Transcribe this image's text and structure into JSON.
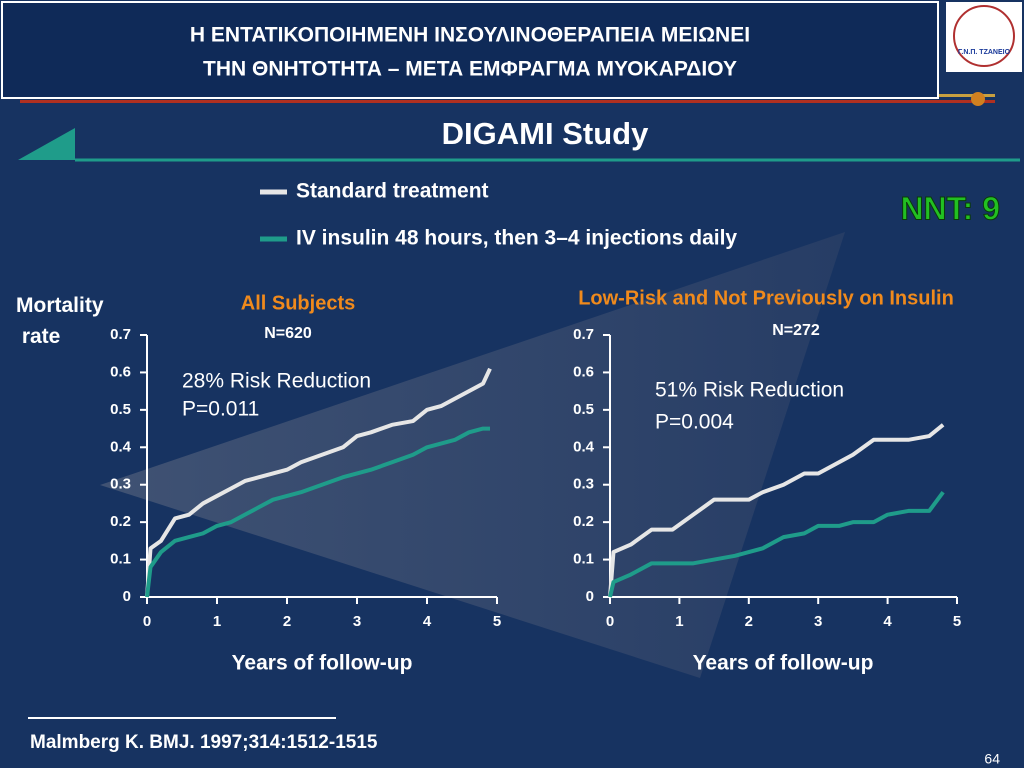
{
  "header": {
    "title_lines": [
      "Η ΕΝΤΑΤΙΚΟΠΟΙΗΜΕΝΗ ΙΝΣΟΥΛΙΝΟΘΕΡΑΠΕΙΑ ΜΕΙΩΝΕΙ",
      "ΤΗΝ ΘΝΗΤΟΤΗΤΑ – ΜΕΤΑ ΕΜΦΡΑΓΜΑ ΜΥΟΚΑΡΔΙΟΥ"
    ],
    "logo_text": "Γ.Ν.Π. ΤΖΑΝΕΙΟ"
  },
  "study_title": "DIGAMI Study",
  "nnt": "NNT: 9",
  "citation": "Malmberg K. BMJ. 1997;314:1512-1515",
  "page_number": "64",
  "chart_data": [
    {
      "type": "line",
      "y_label": "Mortality rate",
      "subtitle": "All Subjects",
      "n_label": "N=620",
      "annotations": [
        "28% Risk Reduction",
        "P=0.011"
      ],
      "x_label": "Years of follow-up",
      "x": [
        0,
        0.05,
        0.2,
        0.4,
        0.6,
        0.8,
        1.0,
        1.2,
        1.4,
        1.6,
        1.8,
        2.0,
        2.2,
        2.5,
        2.8,
        3.0,
        3.2,
        3.5,
        3.8,
        4.0,
        4.2,
        4.4,
        4.6,
        4.8,
        4.9
      ],
      "series": [
        {
          "name": "Standard treatment",
          "color": "#e6e6e6",
          "values": [
            0,
            0.13,
            0.15,
            0.21,
            0.22,
            0.25,
            0.27,
            0.29,
            0.31,
            0.32,
            0.33,
            0.34,
            0.36,
            0.38,
            0.4,
            0.43,
            0.44,
            0.46,
            0.47,
            0.5,
            0.51,
            0.53,
            0.55,
            0.57,
            0.61
          ]
        },
        {
          "name": "IV insulin 48 hours, then 3–4 injections daily",
          "color": "#1f9c8a",
          "values": [
            0,
            0.08,
            0.12,
            0.15,
            0.16,
            0.17,
            0.19,
            0.2,
            0.22,
            0.24,
            0.26,
            0.27,
            0.28,
            0.3,
            0.32,
            0.33,
            0.34,
            0.36,
            0.38,
            0.4,
            0.41,
            0.42,
            0.44,
            0.45,
            0.45
          ]
        }
      ],
      "xlim": [
        0,
        5
      ],
      "xticks": [
        0,
        1,
        2,
        3,
        4,
        5
      ],
      "ylim": [
        0,
        0.7
      ],
      "yticks": [
        0,
        0.1,
        0.2,
        0.3,
        0.4,
        0.5,
        0.6,
        0.7
      ]
    },
    {
      "type": "line",
      "subtitle": "Low-Risk and Not Previously on Insulin",
      "n_label": "N=272",
      "annotations": [
        "51% Risk Reduction",
        "P=0.004"
      ],
      "x_label": "Years of follow-up",
      "x": [
        0,
        0.05,
        0.3,
        0.6,
        0.9,
        1.2,
        1.5,
        1.8,
        2.0,
        2.2,
        2.5,
        2.8,
        3.0,
        3.3,
        3.5,
        3.8,
        4.0,
        4.3,
        4.6,
        4.8
      ],
      "series": [
        {
          "color": "#e6e6e6",
          "values": [
            0,
            0.12,
            0.14,
            0.18,
            0.18,
            0.22,
            0.26,
            0.26,
            0.26,
            0.28,
            0.3,
            0.33,
            0.33,
            0.36,
            0.38,
            0.42,
            0.42,
            0.42,
            0.43,
            0.46
          ]
        },
        {
          "color": "#1f9c8a",
          "values": [
            0,
            0.04,
            0.06,
            0.09,
            0.09,
            0.09,
            0.1,
            0.11,
            0.12,
            0.13,
            0.16,
            0.17,
            0.19,
            0.19,
            0.2,
            0.2,
            0.22,
            0.23,
            0.23,
            0.28
          ]
        }
      ],
      "xlim": [
        0,
        5
      ],
      "xticks": [
        0,
        1,
        2,
        3,
        4,
        5
      ],
      "ylim": [
        0,
        0.7
      ],
      "yticks": [
        0,
        0.1,
        0.2,
        0.3,
        0.4,
        0.5,
        0.6,
        0.7
      ]
    }
  ]
}
